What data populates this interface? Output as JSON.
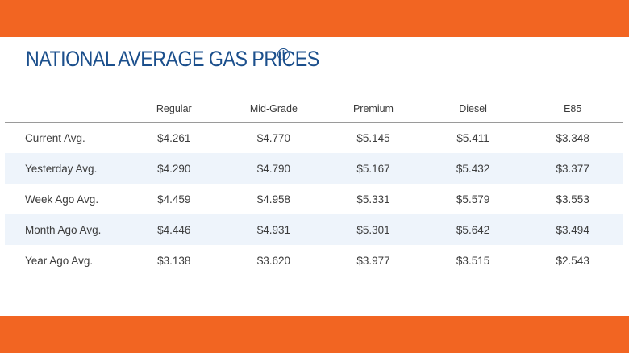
{
  "colors": {
    "band": "#f26522",
    "title": "#1b4f8c",
    "alt_row": "#eef4fb"
  },
  "header": {
    "title": "NATIONAL AVERAGE GAS PRICES",
    "info_icon": "info-circle-icon"
  },
  "table": {
    "columns": [
      "",
      "Regular",
      "Mid-Grade",
      "Premium",
      "Diesel",
      "E85"
    ],
    "rows": [
      {
        "label": "Current Avg.",
        "values": [
          "$4.261",
          "$4.770",
          "$5.145",
          "$5.411",
          "$3.348"
        ]
      },
      {
        "label": "Yesterday Avg.",
        "values": [
          "$4.290",
          "$4.790",
          "$5.167",
          "$5.432",
          "$3.377"
        ]
      },
      {
        "label": "Week Ago Avg.",
        "values": [
          "$4.459",
          "$4.958",
          "$5.331",
          "$5.579",
          "$3.553"
        ]
      },
      {
        "label": "Month Ago Avg.",
        "values": [
          "$4.446",
          "$4.931",
          "$5.301",
          "$5.642",
          "$3.494"
        ]
      },
      {
        "label": "Year Ago Avg.",
        "values": [
          "$3.138",
          "$3.620",
          "$3.977",
          "$3.515",
          "$2.543"
        ]
      }
    ]
  }
}
